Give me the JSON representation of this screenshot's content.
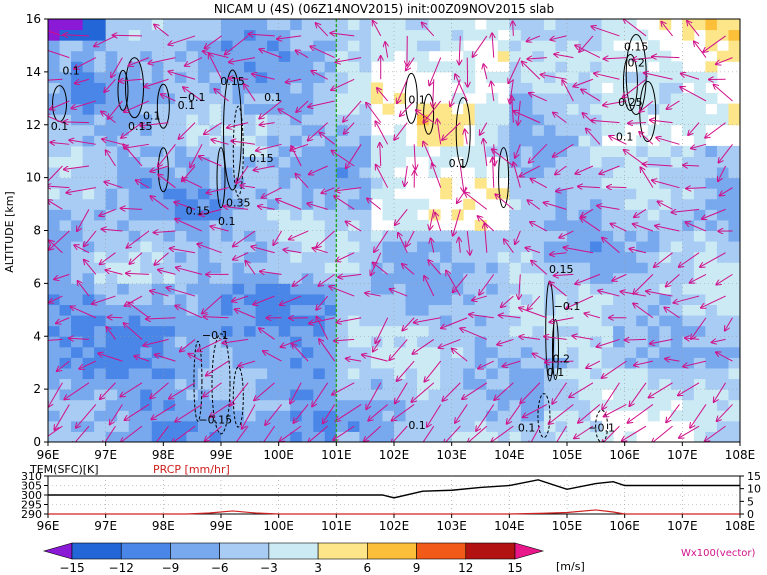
{
  "chart_data": [
    {
      "type": "heatmap",
      "title": "NICAM U (4S) (06Z14NOV2015) init:00Z09NOV2015 slab",
      "ylabel": "ALTITUDE [km]",
      "x_ticks": [
        "96E",
        "97E",
        "98E",
        "99E",
        "100E",
        "101E",
        "102E",
        "103E",
        "104E",
        "105E",
        "106E",
        "107E",
        "108E"
      ],
      "y_ticks": [
        "0",
        "2",
        "4",
        "6",
        "8",
        "10",
        "12",
        "14",
        "16"
      ],
      "xlim": [
        96,
        108
      ],
      "ylim": [
        0,
        16
      ],
      "reference_line_lon": 101,
      "contour_labels": [
        {
          "text": "0.1",
          "lon": 96.2,
          "alt": 11.8
        },
        {
          "text": "0.15",
          "lon": 97.6,
          "alt": 11.8
        },
        {
          "text": "0.1",
          "lon": 97.8,
          "alt": 12.2
        },
        {
          "text": "0.1",
          "lon": 98.4,
          "alt": 12.6
        },
        {
          "text": "−0.1",
          "lon": 98.5,
          "alt": 12.9
        },
        {
          "text": "0.15",
          "lon": 99.2,
          "alt": 13.5
        },
        {
          "text": "0.1",
          "lon": 99.9,
          "alt": 12.9
        },
        {
          "text": "0.15",
          "lon": 99.7,
          "alt": 10.6
        },
        {
          "text": "0.15",
          "lon": 98.6,
          "alt": 8.6
        },
        {
          "text": "0.35",
          "lon": 99.3,
          "alt": 8.9
        },
        {
          "text": "0.1",
          "lon": 99.1,
          "alt": 8.2
        },
        {
          "text": "−0.1",
          "lon": 98.9,
          "alt": 3.9
        },
        {
          "text": "−0.15",
          "lon": 98.9,
          "alt": 0.7
        },
        {
          "text": "0.1",
          "lon": 96.4,
          "alt": 13.9
        },
        {
          "text": "0.1",
          "lon": 102.4,
          "alt": 12.8
        },
        {
          "text": "0.1",
          "lon": 103.1,
          "alt": 10.4
        },
        {
          "text": "0.1",
          "lon": 102.4,
          "alt": 0.5
        },
        {
          "text": "0.15",
          "lon": 104.9,
          "alt": 6.4
        },
        {
          "text": "−0.1",
          "lon": 105.0,
          "alt": 5.0
        },
        {
          "text": "0.2",
          "lon": 104.9,
          "alt": 3.0
        },
        {
          "text": "0.1",
          "lon": 104.8,
          "alt": 2.5
        },
        {
          "text": "0.15",
          "lon": 106.2,
          "alt": 14.8
        },
        {
          "text": "0.2",
          "lon": 106.2,
          "alt": 14.2
        },
        {
          "text": "0.25",
          "lon": 106.1,
          "alt": 12.7
        },
        {
          "text": "0.1",
          "lon": 106.0,
          "alt": 11.4
        },
        {
          "text": "0.1",
          "lon": 104.3,
          "alt": 0.4
        },
        {
          "text": "−0.1",
          "lon": 105.6,
          "alt": 0.4
        }
      ]
    },
    {
      "type": "line",
      "xlim": [
        96,
        108
      ],
      "x_ticks": [
        "96E",
        "97E",
        "98E",
        "99E",
        "100E",
        "101E",
        "102E",
        "103E",
        "104E",
        "105E",
        "106E",
        "107E",
        "108E"
      ],
      "left_axis_label": "TEM(SFC)[K]",
      "left_ticks": [
        "310",
        "305",
        "300",
        "295",
        "290"
      ],
      "right_axis_label": "PRCP [mm/hr]",
      "right_ticks": [
        "15",
        "10",
        "5",
        "0"
      ],
      "series": [
        {
          "name": "TEM(SFC)[K]",
          "color": "#000000",
          "x": [
            96,
            97,
            98,
            99,
            100,
            101,
            101.8,
            102,
            102.5,
            103,
            103.5,
            104,
            104.5,
            105,
            105.5,
            105.8,
            106,
            107,
            108
          ],
          "y": [
            300,
            300,
            300,
            300,
            300,
            300,
            300,
            298.5,
            302,
            302.5,
            304,
            305,
            308,
            303,
            306,
            307,
            305,
            305,
            305
          ]
        },
        {
          "name": "PRCP [mm/hr]",
          "color": "#d02020",
          "x": [
            96,
            98.4,
            98.8,
            99.2,
            99.6,
            100,
            104,
            104.6,
            105,
            105.5,
            105.8,
            106,
            108
          ],
          "y": [
            0,
            0,
            0.4,
            1.2,
            0.4,
            0,
            0,
            0.3,
            0.6,
            1.6,
            0.8,
            0,
            0
          ]
        }
      ]
    }
  ],
  "colorbar": {
    "ticks": [
      "−15",
      "−12",
      "−9",
      "−6",
      "−3",
      "3",
      "6",
      "9",
      "12",
      "15"
    ],
    "unit": "[m/s]",
    "colors": [
      "#8a1ad6",
      "#2266d8",
      "#4a86e8",
      "#78a8ee",
      "#a8ccf4",
      "#cceaf4",
      "#ffffff",
      "#fde68a",
      "#fbbf3a",
      "#f7931e",
      "#f25a1a",
      "#e02020",
      "#b31212",
      "#e8188a"
    ]
  },
  "vector_label": "Wx100(vector)",
  "colors": {
    "positive_arrows": "#d0108a",
    "reference_line": "#22aa22"
  }
}
